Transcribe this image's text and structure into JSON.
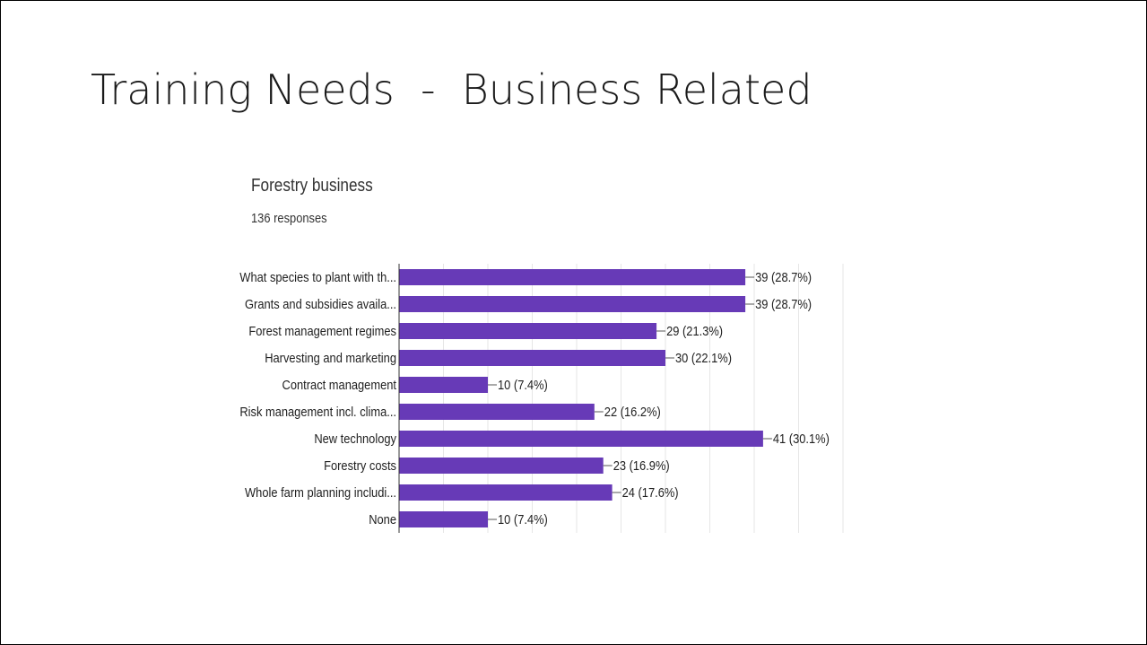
{
  "slide": {
    "title": "Training Needs  -  Business Related"
  },
  "chart_data": {
    "type": "bar",
    "orientation": "horizontal",
    "title": "Forestry business",
    "subtitle": "136 responses",
    "categories": [
      "What species to plant with th...",
      "Grants and subsidies availa...",
      "Forest management regimes",
      "Harvesting and marketing",
      "Contract management",
      "Risk management incl. clima...",
      "New technology",
      "Forestry costs",
      "Whole farm planning includi...",
      "None"
    ],
    "values": [
      39,
      39,
      29,
      30,
      10,
      22,
      41,
      23,
      24,
      10
    ],
    "data_labels": [
      "39 (28.7%)",
      "39 (28.7%)",
      "29 (21.3%)",
      "30 (22.1%)",
      "10 (7.4%)",
      "22 (16.2%)",
      "41 (30.1%)",
      "23 (16.9%)",
      "24 (17.6%)",
      "10 (7.4%)"
    ],
    "xlim": [
      0,
      50
    ],
    "grid": true,
    "bar_color": "#673ab7",
    "grid_color": "#e6e6e6"
  }
}
